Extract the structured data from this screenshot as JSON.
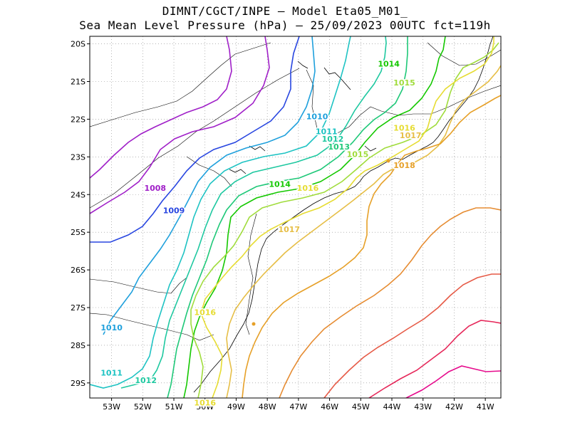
{
  "header": {
    "line1": "DIMNT/CGCT/INPE –  Model Eta05_M01_",
    "line2": "Sea Mean Level Pressure (hPa) – 25/09/2023 00UTC fct=119h"
  },
  "axes": {
    "lat_labels": [
      "20S",
      "21S",
      "22S",
      "23S",
      "24S",
      "25S",
      "26S",
      "27S",
      "28S",
      "29S"
    ],
    "lon_labels": [
      "53W",
      "52W",
      "51W",
      "50W",
      "49W",
      "48W",
      "47W",
      "46W",
      "45W",
      "44W",
      "43W",
      "42W",
      "41W"
    ]
  },
  "chart_data": {
    "type": "contour-map",
    "variable": "Sea Mean Level Pressure",
    "units": "hPa",
    "lon_range": [
      -53.7,
      -40.5
    ],
    "lat_range": [
      -29.4,
      -19.8
    ],
    "contour_labels": [
      {
        "text": "1008",
        "lon": -51.6,
        "lat": -23.9
      },
      {
        "text": "1009",
        "lon": -51.0,
        "lat": -24.5
      },
      {
        "text": "1010",
        "lon": -46.4,
        "lat": -22.0
      },
      {
        "text": "1010",
        "lon": -53.0,
        "lat": -27.6
      },
      {
        "text": "1011",
        "lon": -46.1,
        "lat": -22.4
      },
      {
        "text": "1011",
        "lon": -53.0,
        "lat": -28.8
      },
      {
        "text": "1012",
        "lon": -45.9,
        "lat": -22.6
      },
      {
        "text": "1012",
        "lon": -51.9,
        "lat": -29.0
      },
      {
        "text": "1013",
        "lon": -45.7,
        "lat": -22.8
      },
      {
        "text": "1014",
        "lon": -47.6,
        "lat": -23.8
      },
      {
        "text": "1014",
        "lon": -44.1,
        "lat": -20.6
      },
      {
        "text": "1015",
        "lon": -45.1,
        "lat": -23.0
      },
      {
        "text": "1015",
        "lon": -43.6,
        "lat": -21.1
      },
      {
        "text": "1016",
        "lon": -46.7,
        "lat": -23.9
      },
      {
        "text": "1016",
        "lon": -43.6,
        "lat": -22.3
      },
      {
        "text": "1016",
        "lon": -50.0,
        "lat": -27.2
      },
      {
        "text": "1016",
        "lon": -50.0,
        "lat": -29.6
      },
      {
        "text": "1017",
        "lon": -47.3,
        "lat": -25.0
      },
      {
        "text": "1017",
        "lon": -43.4,
        "lat": -22.5
      },
      {
        "text": "1018",
        "lon": -43.6,
        "lat": -23.3
      }
    ],
    "colors": {
      "1008": "#a020c8",
      "1009": "#2846e0",
      "1010": "#1fa0dc",
      "1011": "#1ec3c3",
      "1012": "#1ec8a0",
      "1013": "#1ec878",
      "1014": "#14c800",
      "1015": "#a0dc3c",
      "1016": "#e6dc32",
      "1017": "#e6be46",
      "1018": "#e6a028",
      "1019": "#e68c32",
      "1020": "#e65a46",
      "1021": "#e6285a",
      "1022": "#e60a8c"
    }
  }
}
